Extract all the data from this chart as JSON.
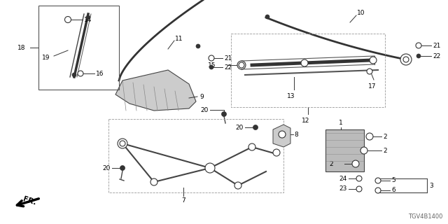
{
  "bg_color": "#ffffff",
  "diagram_code": "TGV4B1400",
  "fig_width": 6.4,
  "fig_height": 3.2,
  "dpi": 100,
  "line_color": "#333333",
  "label_fontsize": 6.5
}
